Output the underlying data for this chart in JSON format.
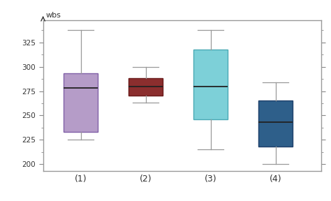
{
  "boxes": [
    {
      "label": "(1)",
      "whisker_low": 225,
      "q1": 233,
      "median": 278,
      "q3": 293,
      "whisker_high": 338,
      "color": "#b59cc8",
      "edge_color": "#8060a8"
    },
    {
      "label": "(2)",
      "whisker_low": 263,
      "q1": 270,
      "median": 280,
      "q3": 288,
      "whisker_high": 300,
      "color": "#8b2e2e",
      "edge_color": "#6a1a1a"
    },
    {
      "label": "(3)",
      "whisker_low": 215,
      "q1": 246,
      "median": 280,
      "q3": 318,
      "whisker_high": 338,
      "color": "#7dd0d8",
      "edge_color": "#4aaab5"
    },
    {
      "label": "(4)",
      "whisker_low": 200,
      "q1": 218,
      "median": 243,
      "q3": 265,
      "whisker_high": 284,
      "color": "#2e5f8a",
      "edge_color": "#1e3f6a"
    }
  ],
  "ylabel": "wbs",
  "ylim": [
    193,
    348
  ],
  "yticks": [
    200,
    225,
    250,
    275,
    300,
    325
  ],
  "background_color": "#ffffff",
  "border_color": "#999999",
  "box_width": 0.52,
  "positions": [
    1,
    2,
    3,
    4
  ],
  "whisker_color": "#999999",
  "median_color": "#222222",
  "cap_ratio": 0.38
}
